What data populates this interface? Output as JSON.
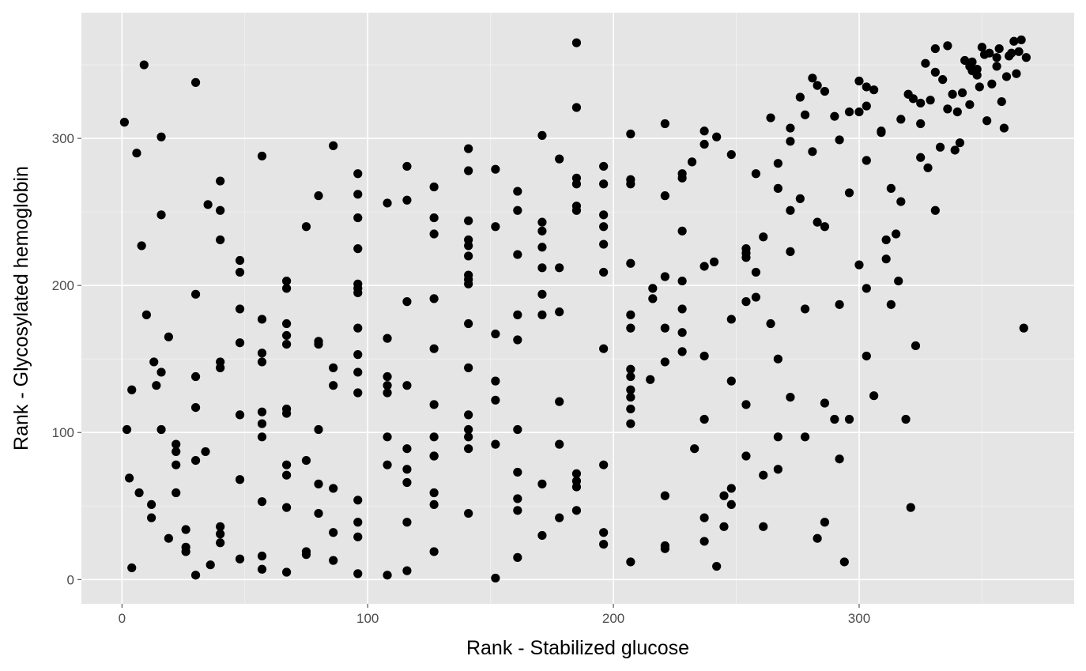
{
  "chart_data": {
    "type": "scatter",
    "xlabel": "Rank - Stabilized glucose",
    "ylabel": "Rank - Glycosylated hemoglobin",
    "xlim": [
      -16.5,
      387.5
    ],
    "ylim": [
      -16.5,
      385.5
    ],
    "x_ticks": [
      0,
      100,
      200,
      300
    ],
    "y_ticks": [
      0,
      100,
      200,
      300
    ],
    "grid": true,
    "point_color": "#000000",
    "panel_color": "#E5E5E5",
    "points": [
      [
        1,
        311
      ],
      [
        2,
        102
      ],
      [
        3,
        69
      ],
      [
        4,
        8
      ],
      [
        4,
        129
      ],
      [
        6,
        290
      ],
      [
        7,
        59
      ],
      [
        8,
        227
      ],
      [
        9,
        350
      ],
      [
        10,
        180
      ],
      [
        12,
        51
      ],
      [
        12,
        42
      ],
      [
        13,
        148
      ],
      [
        14,
        132
      ],
      [
        16,
        301
      ],
      [
        16,
        248
      ],
      [
        16,
        141
      ],
      [
        16,
        102
      ],
      [
        19,
        28
      ],
      [
        19,
        165
      ],
      [
        22,
        92
      ],
      [
        22,
        87
      ],
      [
        22,
        59
      ],
      [
        22,
        78
      ],
      [
        26,
        34
      ],
      [
        26,
        22
      ],
      [
        26,
        19
      ],
      [
        30,
        338
      ],
      [
        30,
        194
      ],
      [
        30,
        138
      ],
      [
        30,
        117
      ],
      [
        30,
        81
      ],
      [
        30,
        3
      ],
      [
        34,
        87
      ],
      [
        35,
        255
      ],
      [
        36,
        10
      ],
      [
        40,
        271
      ],
      [
        40,
        251
      ],
      [
        40,
        231
      ],
      [
        40,
        148
      ],
      [
        40,
        144
      ],
      [
        40,
        36
      ],
      [
        40,
        31
      ],
      [
        40,
        25
      ],
      [
        48,
        217
      ],
      [
        48,
        209
      ],
      [
        48,
        184
      ],
      [
        48,
        161
      ],
      [
        48,
        112
      ],
      [
        48,
        68
      ],
      [
        48,
        14
      ],
      [
        57,
        288
      ],
      [
        57,
        177
      ],
      [
        57,
        154
      ],
      [
        57,
        148
      ],
      [
        57,
        114
      ],
      [
        57,
        106
      ],
      [
        57,
        97
      ],
      [
        57,
        53
      ],
      [
        57,
        16
      ],
      [
        57,
        7
      ],
      [
        67,
        203
      ],
      [
        67,
        198
      ],
      [
        67,
        174
      ],
      [
        67,
        166
      ],
      [
        67,
        160
      ],
      [
        67,
        116
      ],
      [
        67,
        113
      ],
      [
        67,
        78
      ],
      [
        67,
        71
      ],
      [
        67,
        49
      ],
      [
        67,
        5
      ],
      [
        75,
        240
      ],
      [
        75,
        81
      ],
      [
        75,
        19
      ],
      [
        75,
        17
      ],
      [
        80,
        261
      ],
      [
        80,
        162
      ],
      [
        80,
        160
      ],
      [
        80,
        102
      ],
      [
        80,
        65
      ],
      [
        80,
        45
      ],
      [
        86,
        295
      ],
      [
        86,
        144
      ],
      [
        86,
        132
      ],
      [
        86,
        62
      ],
      [
        86,
        32
      ],
      [
        86,
        13
      ],
      [
        96,
        276
      ],
      [
        96,
        262
      ],
      [
        96,
        246
      ],
      [
        96,
        225
      ],
      [
        96,
        201
      ],
      [
        96,
        198
      ],
      [
        96,
        195
      ],
      [
        96,
        171
      ],
      [
        96,
        153
      ],
      [
        96,
        141
      ],
      [
        96,
        127
      ],
      [
        96,
        54
      ],
      [
        96,
        39
      ],
      [
        96,
        29
      ],
      [
        96,
        4
      ],
      [
        108,
        256
      ],
      [
        108,
        164
      ],
      [
        108,
        138
      ],
      [
        108,
        132
      ],
      [
        108,
        127
      ],
      [
        108,
        97
      ],
      [
        108,
        78
      ],
      [
        108,
        3
      ],
      [
        116,
        281
      ],
      [
        116,
        258
      ],
      [
        116,
        189
      ],
      [
        116,
        132
      ],
      [
        116,
        89
      ],
      [
        116,
        75
      ],
      [
        116,
        66
      ],
      [
        116,
        39
      ],
      [
        116,
        6
      ],
      [
        127,
        267
      ],
      [
        127,
        246
      ],
      [
        127,
        235
      ],
      [
        127,
        191
      ],
      [
        127,
        157
      ],
      [
        127,
        119
      ],
      [
        127,
        97
      ],
      [
        127,
        84
      ],
      [
        127,
        84
      ],
      [
        127,
        59
      ],
      [
        127,
        51
      ],
      [
        127,
        19
      ],
      [
        141,
        293
      ],
      [
        141,
        278
      ],
      [
        141,
        244
      ],
      [
        141,
        231
      ],
      [
        141,
        227
      ],
      [
        141,
        220
      ],
      [
        141,
        207
      ],
      [
        141,
        204
      ],
      [
        141,
        201
      ],
      [
        141,
        174
      ],
      [
        141,
        144
      ],
      [
        141,
        112
      ],
      [
        141,
        102
      ],
      [
        141,
        97
      ],
      [
        141,
        89
      ],
      [
        141,
        45
      ],
      [
        152,
        279
      ],
      [
        152,
        240
      ],
      [
        152,
        167
      ],
      [
        152,
        135
      ],
      [
        152,
        122
      ],
      [
        152,
        92
      ],
      [
        152,
        1
      ],
      [
        161,
        264
      ],
      [
        161,
        251
      ],
      [
        161,
        221
      ],
      [
        161,
        180
      ],
      [
        161,
        163
      ],
      [
        161,
        102
      ],
      [
        161,
        73
      ],
      [
        161,
        55
      ],
      [
        161,
        47
      ],
      [
        161,
        15
      ],
      [
        171,
        302
      ],
      [
        171,
        243
      ],
      [
        171,
        237
      ],
      [
        171,
        226
      ],
      [
        171,
        212
      ],
      [
        171,
        194
      ],
      [
        171,
        180
      ],
      [
        171,
        65
      ],
      [
        171,
        30
      ],
      [
        178,
        286
      ],
      [
        178,
        212
      ],
      [
        178,
        182
      ],
      [
        178,
        121
      ],
      [
        178,
        92
      ],
      [
        178,
        42
      ],
      [
        185,
        365
      ],
      [
        185,
        321
      ],
      [
        185,
        273
      ],
      [
        185,
        269
      ],
      [
        185,
        254
      ],
      [
        185,
        251
      ],
      [
        185,
        72
      ],
      [
        185,
        67
      ],
      [
        185,
        63
      ],
      [
        185,
        47
      ],
      [
        196,
        281
      ],
      [
        196,
        269
      ],
      [
        196,
        248
      ],
      [
        196,
        240
      ],
      [
        196,
        228
      ],
      [
        196,
        209
      ],
      [
        196,
        157
      ],
      [
        196,
        78
      ],
      [
        196,
        32
      ],
      [
        196,
        24
      ],
      [
        207,
        303
      ],
      [
        207,
        272
      ],
      [
        207,
        269
      ],
      [
        207,
        215
      ],
      [
        207,
        180
      ],
      [
        207,
        171
      ],
      [
        207,
        143
      ],
      [
        207,
        138
      ],
      [
        207,
        129
      ],
      [
        207,
        124
      ],
      [
        207,
        116
      ],
      [
        207,
        106
      ],
      [
        207,
        12
      ],
      [
        215,
        136
      ],
      [
        216,
        198
      ],
      [
        216,
        191
      ],
      [
        221,
        310
      ],
      [
        221,
        261
      ],
      [
        221,
        206
      ],
      [
        221,
        171
      ],
      [
        221,
        148
      ],
      [
        221,
        57
      ],
      [
        221,
        23
      ],
      [
        221,
        21
      ],
      [
        228,
        276
      ],
      [
        228,
        273
      ],
      [
        228,
        237
      ],
      [
        228,
        203
      ],
      [
        228,
        184
      ],
      [
        228,
        168
      ],
      [
        228,
        155
      ],
      [
        232,
        284
      ],
      [
        233,
        89
      ],
      [
        237,
        305
      ],
      [
        237,
        296
      ],
      [
        237,
        213
      ],
      [
        237,
        152
      ],
      [
        237,
        109
      ],
      [
        237,
        42
      ],
      [
        237,
        26
      ],
      [
        241,
        216
      ],
      [
        242,
        9
      ],
      [
        242,
        301
      ],
      [
        245,
        57
      ],
      [
        245,
        36
      ],
      [
        248,
        289
      ],
      [
        248,
        177
      ],
      [
        248,
        135
      ],
      [
        248,
        62
      ],
      [
        248,
        51
      ],
      [
        254,
        225
      ],
      [
        254,
        222
      ],
      [
        254,
        219
      ],
      [
        254,
        189
      ],
      [
        254,
        119
      ],
      [
        254,
        84
      ],
      [
        258,
        276
      ],
      [
        258,
        209
      ],
      [
        258,
        192
      ],
      [
        261,
        233
      ],
      [
        261,
        71
      ],
      [
        261,
        36
      ],
      [
        264,
        314
      ],
      [
        264,
        174
      ],
      [
        267,
        283
      ],
      [
        267,
        266
      ],
      [
        267,
        150
      ],
      [
        267,
        97
      ],
      [
        267,
        75
      ],
      [
        272,
        307
      ],
      [
        272,
        298
      ],
      [
        272,
        251
      ],
      [
        272,
        223
      ],
      [
        272,
        124
      ],
      [
        276,
        328
      ],
      [
        276,
        259
      ],
      [
        278,
        316
      ],
      [
        278,
        184
      ],
      [
        278,
        97
      ],
      [
        281,
        341
      ],
      [
        281,
        291
      ],
      [
        283,
        336
      ],
      [
        283,
        243
      ],
      [
        283,
        28
      ],
      [
        286,
        332
      ],
      [
        286,
        240
      ],
      [
        286,
        120
      ],
      [
        286,
        39
      ],
      [
        290,
        315
      ],
      [
        290,
        109
      ],
      [
        292,
        299
      ],
      [
        292,
        187
      ],
      [
        292,
        82
      ],
      [
        294,
        12
      ],
      [
        296,
        318
      ],
      [
        296,
        263
      ],
      [
        296,
        109
      ],
      [
        300,
        339
      ],
      [
        300,
        318
      ],
      [
        300,
        214
      ],
      [
        303,
        335
      ],
      [
        303,
        322
      ],
      [
        303,
        285
      ],
      [
        303,
        198
      ],
      [
        303,
        152
      ],
      [
        306,
        333
      ],
      [
        306,
        125
      ],
      [
        309,
        305
      ],
      [
        309,
        304
      ],
      [
        311,
        231
      ],
      [
        311,
        218
      ],
      [
        313,
        266
      ],
      [
        313,
        187
      ],
      [
        315,
        235
      ],
      [
        316,
        203
      ],
      [
        317,
        257
      ],
      [
        317,
        313
      ],
      [
        319,
        109
      ],
      [
        320,
        330
      ],
      [
        321,
        49
      ],
      [
        322,
        327
      ],
      [
        323,
        159
      ],
      [
        325,
        324
      ],
      [
        325,
        310
      ],
      [
        325,
        287
      ],
      [
        327,
        351
      ],
      [
        328,
        280
      ],
      [
        329,
        326
      ],
      [
        331,
        361
      ],
      [
        331,
        345
      ],
      [
        331,
        251
      ],
      [
        333,
        294
      ],
      [
        334,
        340
      ],
      [
        336,
        320
      ],
      [
        336,
        363
      ],
      [
        338,
        330
      ],
      [
        339,
        292
      ],
      [
        340,
        318
      ],
      [
        341,
        297
      ],
      [
        342,
        331
      ],
      [
        343,
        353
      ],
      [
        345,
        349
      ],
      [
        345,
        323
      ],
      [
        346,
        346
      ],
      [
        346,
        352
      ],
      [
        348,
        347
      ],
      [
        348,
        343
      ],
      [
        349,
        335
      ],
      [
        350,
        362
      ],
      [
        351,
        357
      ],
      [
        352,
        312
      ],
      [
        353,
        358
      ],
      [
        354,
        337
      ],
      [
        356,
        349
      ],
      [
        356,
        355
      ],
      [
        357,
        361
      ],
      [
        358,
        325
      ],
      [
        359,
        307
      ],
      [
        360,
        342
      ],
      [
        361,
        356
      ],
      [
        362,
        358
      ],
      [
        363,
        366
      ],
      [
        364,
        344
      ],
      [
        365,
        359
      ],
      [
        366,
        367
      ],
      [
        367,
        171
      ],
      [
        368,
        355
      ]
    ]
  }
}
